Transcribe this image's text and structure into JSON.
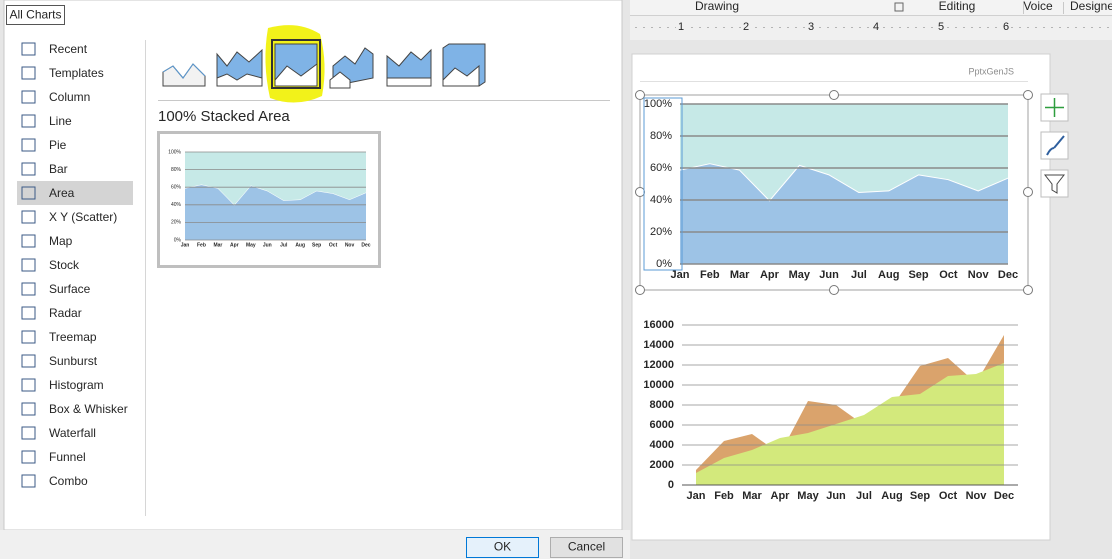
{
  "dialog": {
    "tab": "All Charts",
    "categories": [
      "Recent",
      "Templates",
      "Column",
      "Line",
      "Pie",
      "Bar",
      "Area",
      "X Y (Scatter)",
      "Map",
      "Stock",
      "Surface",
      "Radar",
      "Treemap",
      "Sunburst",
      "Histogram",
      "Box & Whisker",
      "Waterfall",
      "Funnel",
      "Combo"
    ],
    "selected_index": 6,
    "preview_title": "100% Stacked Area",
    "buttons": {
      "ok": "OK",
      "cancel": "Cancel"
    }
  },
  "ribbon": {
    "groups": [
      "Drawing",
      "Editing",
      "Voice",
      "Designe"
    ]
  },
  "ruler": {
    "labels": [
      1,
      2,
      3,
      4,
      5,
      6
    ]
  },
  "slide": {
    "watermark": "PptxGenJS",
    "charts": [
      {
        "type": "area",
        "stacking": "percent",
        "categories": [
          "Jan",
          "Feb",
          "Mar",
          "Apr",
          "May",
          "Jun",
          "Jul",
          "Aug",
          "Sep",
          "Oct",
          "Nov",
          "Dec"
        ],
        "series": [
          {
            "color": "#9dc3e6",
            "values": [
              59,
              63,
              59,
              40,
              62,
              56,
              45,
              46,
              56,
              53,
              46,
              54
            ]
          },
          {
            "color": "#c6e9e7",
            "values": [
              41,
              37,
              41,
              60,
              38,
              44,
              55,
              54,
              44,
              47,
              54,
              46
            ]
          }
        ],
        "ylim": [
          0,
          100
        ],
        "yticks": [
          {
            "value": 0,
            "label": "0%"
          },
          {
            "value": 20,
            "label": "20%"
          },
          {
            "value": 40,
            "label": "40%"
          },
          {
            "value": 60,
            "label": "60%"
          },
          {
            "value": 80,
            "label": "80%"
          },
          {
            "value": 100,
            "label": "100%"
          }
        ],
        "grid": true
      },
      {
        "type": "area",
        "stacking": "none",
        "categories": [
          "Jan",
          "Feb",
          "Mar",
          "Apr",
          "May",
          "Jun",
          "Jul",
          "Aug",
          "Sep",
          "Oct",
          "Nov",
          "Dec"
        ],
        "series": [
          {
            "color": "#daa36c",
            "values": [
              1500,
              4400,
              5100,
              3100,
              8400,
              8000,
              6000,
              7800,
              11900,
              12700,
              10200,
              15000
            ]
          },
          {
            "color": "#d3e97c",
            "values": [
              1200,
              2700,
              3500,
              4700,
              5200,
              6100,
              7000,
              8800,
              9100,
              10900,
              11100,
              12200
            ]
          }
        ],
        "ylim": [
          0,
          16000
        ],
        "yticks": [
          0,
          2000,
          4000,
          6000,
          8000,
          10000,
          12000,
          14000,
          16000
        ],
        "grid": true
      }
    ]
  }
}
